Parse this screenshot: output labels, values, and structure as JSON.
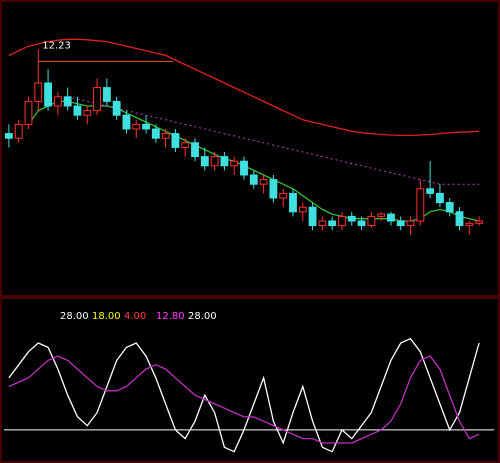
{
  "chart_data": [
    {
      "type": "candlestick",
      "ylim": [
        7,
        13
      ],
      "up_color": "#ff3030",
      "down_color": "#40e0e0",
      "annotations": [
        "12.23"
      ],
      "open": [
        10.4,
        10.3,
        10.6,
        11.1,
        11.5,
        11.0,
        11.2,
        11.0,
        10.8,
        10.9,
        11.4,
        11.1,
        10.8,
        10.5,
        10.6,
        10.5,
        10.3,
        10.4,
        10.1,
        10.2,
        9.9,
        9.7,
        9.9,
        9.7,
        9.8,
        9.5,
        9.3,
        9.4,
        9.0,
        9.1,
        8.7,
        8.8,
        8.4,
        8.5,
        8.4,
        8.6,
        8.5,
        8.4,
        8.6,
        8.65,
        8.5,
        8.4,
        8.5,
        9.2,
        9.1,
        8.9,
        8.7,
        8.4,
        8.45
      ],
      "high": [
        10.6,
        10.7,
        11.2,
        12.23,
        11.8,
        11.3,
        11.4,
        11.2,
        11.0,
        11.6,
        11.6,
        11.2,
        10.9,
        10.7,
        10.8,
        10.6,
        10.5,
        10.5,
        10.3,
        10.3,
        10.1,
        10.0,
        10.0,
        9.9,
        9.9,
        9.6,
        9.5,
        9.5,
        9.2,
        9.2,
        8.9,
        8.9,
        8.6,
        8.6,
        8.7,
        8.7,
        8.6,
        8.7,
        8.7,
        8.7,
        8.6,
        8.6,
        9.4,
        9.8,
        9.3,
        9.0,
        8.8,
        8.5,
        8.6
      ],
      "low": [
        10.1,
        10.2,
        10.5,
        10.9,
        10.9,
        10.8,
        10.9,
        10.7,
        10.6,
        10.8,
        11.0,
        10.7,
        10.4,
        10.3,
        10.4,
        10.2,
        10.1,
        10.0,
        9.9,
        9.8,
        9.6,
        9.6,
        9.6,
        9.5,
        9.4,
        9.2,
        9.1,
        8.9,
        8.8,
        8.6,
        8.5,
        8.3,
        8.3,
        8.3,
        8.3,
        8.4,
        8.3,
        8.35,
        8.5,
        8.4,
        8.3,
        8.2,
        8.4,
        9.0,
        8.8,
        8.6,
        8.3,
        8.2,
        8.4
      ],
      "close": [
        10.3,
        10.6,
        11.1,
        11.5,
        11.0,
        11.2,
        11.0,
        10.8,
        10.9,
        11.4,
        11.1,
        10.8,
        10.5,
        10.6,
        10.5,
        10.3,
        10.4,
        10.1,
        10.2,
        9.9,
        9.7,
        9.9,
        9.7,
        9.8,
        9.5,
        9.3,
        9.4,
        9.0,
        9.1,
        8.7,
        8.8,
        8.4,
        8.5,
        8.4,
        8.6,
        8.5,
        8.4,
        8.6,
        8.65,
        8.5,
        8.4,
        8.5,
        9.2,
        9.1,
        8.9,
        8.7,
        8.4,
        8.45,
        8.5
      ],
      "series": [
        {
          "color": "#e02020",
          "dash": false,
          "values": [
            12.1,
            12.2,
            12.3,
            12.35,
            12.4,
            12.43,
            12.45,
            12.45,
            12.44,
            12.42,
            12.4,
            12.35,
            12.3,
            12.25,
            12.2,
            12.15,
            12.1,
            12.0,
            11.9,
            11.8,
            11.7,
            11.6,
            11.5,
            11.4,
            11.3,
            11.2,
            11.1,
            11.0,
            10.9,
            10.8,
            10.7,
            10.65,
            10.6,
            10.55,
            10.5,
            10.45,
            10.42,
            10.4,
            10.38,
            10.37,
            10.36,
            10.36,
            10.37,
            10.38,
            10.4,
            10.42,
            10.43,
            10.44,
            10.45
          ]
        },
        {
          "color": "#30c030",
          "dash": false,
          "values": [
            null,
            null,
            10.6,
            10.9,
            11.0,
            11.1,
            11.1,
            11.05,
            11.0,
            11.0,
            11.0,
            10.95,
            10.85,
            10.75,
            10.65,
            10.55,
            10.45,
            10.35,
            10.25,
            10.15,
            10.05,
            9.95,
            9.85,
            9.8,
            9.7,
            9.6,
            9.5,
            9.4,
            9.3,
            9.2,
            9.05,
            8.9,
            8.75,
            8.65,
            8.6,
            8.55,
            8.55,
            8.55,
            8.55,
            8.55,
            8.5,
            8.5,
            8.55,
            8.7,
            8.75,
            8.7,
            8.6,
            8.55,
            8.5
          ]
        },
        {
          "color": "#c040c0",
          "dash": true,
          "values": [
            null,
            null,
            null,
            null,
            null,
            null,
            11.2,
            11.15,
            11.1,
            11.05,
            11.0,
            10.95,
            10.9,
            10.85,
            10.8,
            10.75,
            10.7,
            10.65,
            10.6,
            10.55,
            10.5,
            10.45,
            10.4,
            10.35,
            10.3,
            10.25,
            10.2,
            10.15,
            10.1,
            10.05,
            10.0,
            9.95,
            9.9,
            9.85,
            9.8,
            9.75,
            9.7,
            9.65,
            9.6,
            9.55,
            9.5,
            9.45,
            9.4,
            9.35,
            9.3,
            9.3,
            9.3,
            9.3,
            9.3
          ]
        }
      ]
    },
    {
      "type": "line",
      "ylim": [
        -30,
        115
      ],
      "annotations": [
        "28.00",
        "18.00",
        "4.00",
        "12.80",
        "28.00"
      ],
      "series": [
        {
          "color": "#ffffff",
          "values": [
            60,
            75,
            90,
            100,
            95,
            70,
            40,
            15,
            5,
            20,
            50,
            80,
            95,
            100,
            85,
            60,
            30,
            0,
            -10,
            10,
            40,
            20,
            -20,
            -25,
            0,
            30,
            60,
            10,
            -15,
            20,
            50,
            10,
            -20,
            -25,
            0,
            -10,
            5,
            20,
            50,
            80,
            100,
            105,
            90,
            60,
            30,
            0,
            20,
            60,
            100
          ]
        },
        {
          "color": "#c030c0",
          "values": [
            50,
            55,
            60,
            70,
            80,
            85,
            80,
            70,
            60,
            50,
            45,
            45,
            50,
            60,
            70,
            75,
            70,
            60,
            50,
            40,
            35,
            30,
            25,
            20,
            15,
            15,
            10,
            5,
            0,
            -5,
            -10,
            -10,
            -15,
            -15,
            -15,
            -15,
            -10,
            -5,
            0,
            10,
            30,
            60,
            80,
            85,
            70,
            40,
            10,
            -10,
            -5
          ]
        }
      ]
    }
  ]
}
